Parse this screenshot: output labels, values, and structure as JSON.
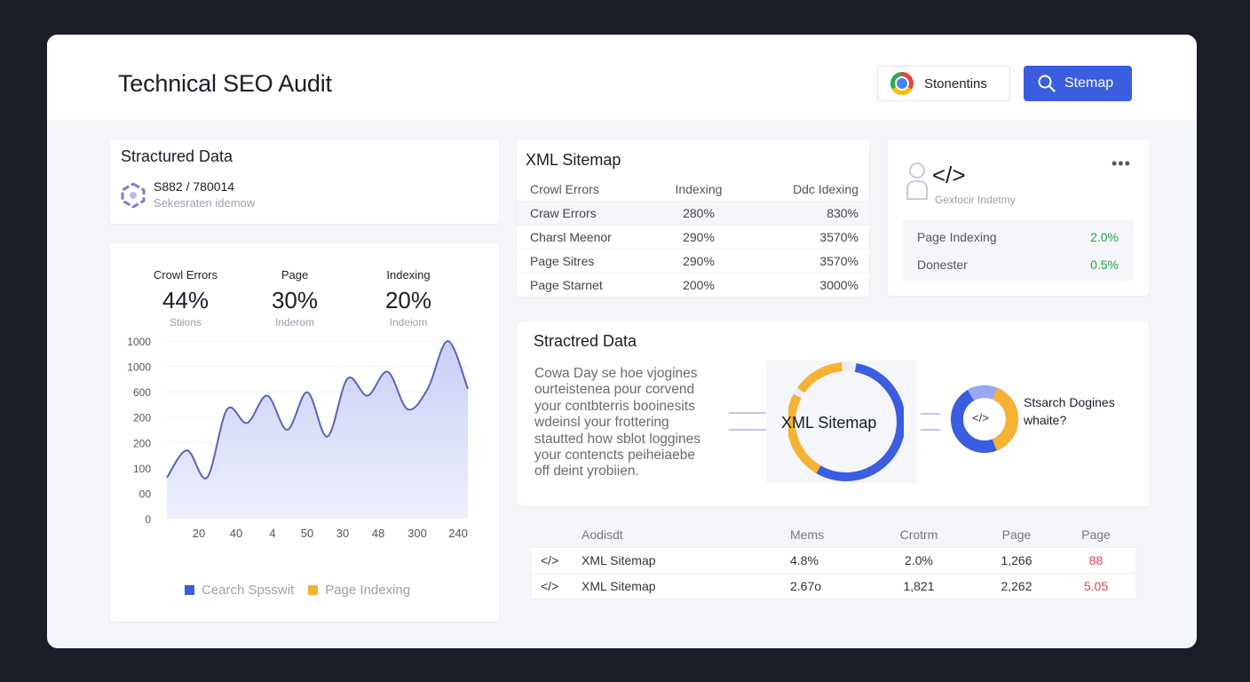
{
  "header": {
    "title": "Technical SEO Audit",
    "btn_secondary": "Stonentins",
    "btn_primary": "Stemap"
  },
  "structured_card": {
    "title": "Stractured Data",
    "value": "S882 / 780014",
    "sub": "Sekesraten idemow"
  },
  "stats": [
    {
      "label": "Crowl Errors",
      "value": "44%",
      "caption": "Stiions"
    },
    {
      "label": "Page",
      "value": "30%",
      "caption": "Inderom"
    },
    {
      "label": "Indexing",
      "value": "20%",
      "caption": "Indeiom"
    }
  ],
  "chart_data": {
    "type": "area",
    "y_tick_labels": [
      "1000",
      "1000",
      "600",
      "200",
      "200",
      "100",
      "00",
      "0"
    ],
    "x_tick_labels": [
      "20",
      "40",
      "4",
      "50",
      "30",
      "48",
      "300",
      "240"
    ],
    "series": [
      {
        "name": "Cearch Spsswit",
        "color": "#3b5de0"
      },
      {
        "name": "Page Indexing",
        "color": "#f5b233"
      }
    ],
    "area_points": [
      [
        0,
        60
      ],
      [
        5,
        100
      ],
      [
        10,
        60
      ],
      [
        15,
        160
      ],
      [
        20,
        140
      ],
      [
        25,
        180
      ],
      [
        30,
        130
      ],
      [
        35,
        185
      ],
      [
        40,
        120
      ],
      [
        45,
        205
      ],
      [
        50,
        180
      ],
      [
        55,
        215
      ],
      [
        60,
        160
      ],
      [
        65,
        190
      ],
      [
        70,
        260
      ],
      [
        75,
        190
      ]
    ]
  },
  "sitemap": {
    "title": "XML Sitemap",
    "head": [
      "Crowl Errors",
      "Indexing",
      "Ddc Idexing"
    ],
    "rows": [
      [
        "Craw Errors",
        "280%",
        "830%"
      ],
      [
        "Charsl Meenor",
        "290%",
        "3570%"
      ],
      [
        "Page Sitres",
        "290%",
        "3570%"
      ],
      [
        "Page Starnet",
        "200%",
        "3000%"
      ]
    ]
  },
  "code_card": {
    "icon": "</>",
    "caption": "Gexfocir Indetmy",
    "menu": "•••",
    "rows": [
      {
        "label": "Page Indexing",
        "value": "2.0%"
      },
      {
        "label": "Donester",
        "value": "0.5%"
      }
    ],
    "value_color": "#22a447"
  },
  "structured_panel": {
    "title": "Stractred Data",
    "lines": [
      "Cowa Day se hoe vjogines",
      "ourteisteneа pour corvend",
      "your contbterris booinesits",
      "wdeinsl your frottering",
      "stautted how sblot loggines",
      "your contencts peiheiaebe",
      "off deint yrobiien."
    ],
    "donut_label": "XML Sitemap",
    "small_icon": "</>",
    "small_label_1": "Stsarch Doginеs",
    "small_label_2": "whaite?"
  },
  "bottom_table": {
    "head": [
      "Aodisdt",
      "Mems",
      "Crotrm",
      "Page",
      "Page"
    ],
    "rows": [
      {
        "icon": "</>",
        "name": "XML Sitemap",
        "m": "4.8%",
        "c": "2.0%",
        "p1": "1,266",
        "p2": "88"
      },
      {
        "icon": "</>",
        "name": "XML Sitemap",
        "m": "2.67o",
        "c": "1,821",
        "p1": "2,262",
        "p2": "5.05"
      }
    ]
  }
}
